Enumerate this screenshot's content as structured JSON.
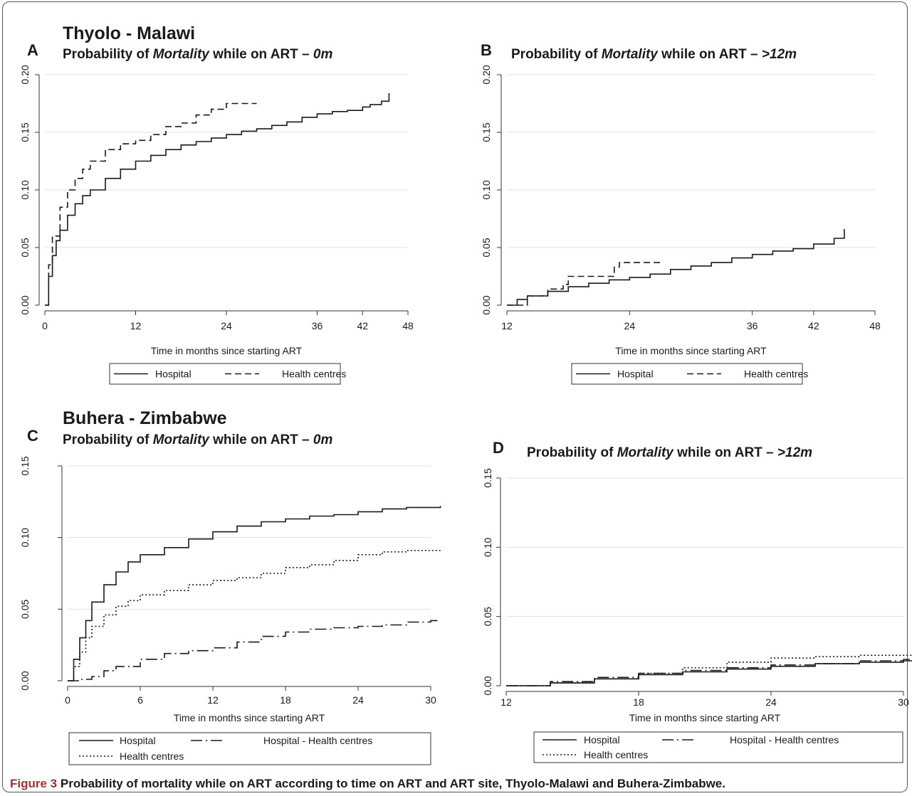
{
  "figure": {
    "caption_label": "Figure 3",
    "caption_text": "Probability of mortality while on ART according to time on ART and ART site, Thyolo-Malawi and Buhera-Zimbabwe."
  },
  "colors": {
    "line": "#1a1a1a",
    "grid": "#e0e0e0",
    "axis": "#333333",
    "caption_label": "#a0322d"
  },
  "chart_data": [
    {
      "type": "line",
      "panel_letter": "A",
      "region_title": "Thyolo - Malawi",
      "title_parts": [
        "Probability of ",
        "Mortality",
        " while on ART – ",
        "0m"
      ],
      "xlabel": "Time in months since starting ART",
      "ylabel": "",
      "xlim": [
        0,
        48
      ],
      "ylim": [
        0,
        0.2
      ],
      "xticks": [
        0,
        12,
        24,
        36,
        42,
        48
      ],
      "yticks": [
        0,
        0.05,
        0.1,
        0.15,
        0.2
      ],
      "ytick_labels": [
        "0.00",
        "0.05",
        "0.10",
        "0.15",
        "0.20"
      ],
      "grid": true,
      "legend_position": "bottom",
      "legend_columns": 2,
      "series": [
        {
          "name": "Hospital",
          "dash": "solid",
          "x": [
            0,
            0.5,
            1,
            1.5,
            2,
            3,
            4,
            5,
            6,
            8,
            10,
            12,
            14,
            16,
            18,
            20,
            22,
            24,
            26,
            28,
            30,
            32,
            34,
            36,
            38,
            40,
            42,
            43,
            44.5,
            45.5
          ],
          "y": [
            0,
            0.025,
            0.043,
            0.056,
            0.065,
            0.078,
            0.088,
            0.095,
            0.1,
            0.11,
            0.118,
            0.125,
            0.13,
            0.135,
            0.139,
            0.142,
            0.145,
            0.148,
            0.151,
            0.153,
            0.156,
            0.159,
            0.163,
            0.166,
            0.168,
            0.169,
            0.172,
            0.174,
            0.177,
            0.184
          ]
        },
        {
          "name": "Health centres",
          "dash": "dashed",
          "x": [
            0,
            0.5,
            1,
            2,
            3,
            4,
            5,
            6,
            8,
            10,
            12,
            14,
            16,
            18,
            20,
            22,
            24,
            26,
            28
          ],
          "y": [
            0,
            0.035,
            0.06,
            0.085,
            0.1,
            0.11,
            0.118,
            0.125,
            0.135,
            0.14,
            0.143,
            0.148,
            0.155,
            0.158,
            0.165,
            0.17,
            0.175,
            0.175,
            0.175
          ]
        }
      ]
    },
    {
      "type": "line",
      "panel_letter": "B",
      "region_title": "",
      "title_parts": [
        "Probability of ",
        "Mortality",
        " while on ART – ",
        ">12m"
      ],
      "xlabel": "Time in months since starting ART",
      "ylabel": "",
      "xlim": [
        12,
        48
      ],
      "ylim": [
        0,
        0.2
      ],
      "xticks": [
        12,
        24,
        36,
        42,
        48
      ],
      "yticks": [
        0,
        0.05,
        0.1,
        0.15,
        0.2
      ],
      "ytick_labels": [
        "0.00",
        "0.05",
        "0.10",
        "0.15",
        "0.20"
      ],
      "grid": true,
      "legend_position": "bottom",
      "legend_columns": 2,
      "series": [
        {
          "name": "Hospital",
          "dash": "solid",
          "x": [
            12,
            13,
            14,
            16,
            18,
            20,
            22,
            24,
            26,
            28,
            30,
            32,
            34,
            36,
            38,
            40,
            42,
            44,
            45
          ],
          "y": [
            0,
            0.005,
            0.008,
            0.012,
            0.016,
            0.019,
            0.022,
            0.024,
            0.027,
            0.031,
            0.034,
            0.037,
            0.041,
            0.044,
            0.047,
            0.049,
            0.053,
            0.058,
            0.066
          ]
        },
        {
          "name": "Health centres",
          "dash": "dashed",
          "x": [
            12,
            14,
            16,
            17.5,
            18,
            20,
            21.5,
            22.5,
            23,
            27
          ],
          "y": [
            0,
            0.008,
            0.014,
            0.018,
            0.025,
            0.025,
            0.025,
            0.033,
            0.037,
            0.037
          ]
        }
      ]
    },
    {
      "type": "line",
      "panel_letter": "C",
      "region_title": "Buhera - Zimbabwe",
      "title_parts": [
        "Probability of ",
        "Mortality",
        " while on ART – ",
        "0m"
      ],
      "xlabel": "Time in months since starting ART",
      "ylabel": "",
      "xlim": [
        0,
        30
      ],
      "ylim": [
        0,
        0.15
      ],
      "xticks": [
        0,
        6,
        12,
        18,
        24,
        30
      ],
      "yticks": [
        0,
        0.05,
        0.1,
        0.15
      ],
      "ytick_labels": [
        "0.00",
        "0.05",
        "0.10",
        "0.15"
      ],
      "grid": true,
      "legend_position": "bottom",
      "legend_columns": 2,
      "series": [
        {
          "name": "Hospital",
          "dash": "solid",
          "x": [
            0,
            0.5,
            1,
            1.5,
            2,
            3,
            4,
            5,
            6,
            8,
            10,
            12,
            14,
            16,
            18,
            20,
            22,
            24,
            26,
            28,
            30,
            30.8
          ],
          "y": [
            0,
            0.015,
            0.03,
            0.042,
            0.055,
            0.067,
            0.076,
            0.083,
            0.088,
            0.093,
            0.099,
            0.104,
            0.108,
            0.111,
            0.113,
            0.115,
            0.116,
            0.118,
            0.12,
            0.121,
            0.121,
            0.122
          ]
        },
        {
          "name": "Hospital - Health centres",
          "dash": "dashdot",
          "x": [
            0,
            1,
            2,
            3,
            4,
            6,
            8,
            10,
            12,
            14,
            16,
            18,
            20,
            22,
            24,
            26,
            28,
            30,
            30.8
          ],
          "y": [
            0,
            0.001,
            0.003,
            0.007,
            0.01,
            0.015,
            0.019,
            0.021,
            0.023,
            0.027,
            0.031,
            0.034,
            0.036,
            0.037,
            0.038,
            0.039,
            0.041,
            0.042,
            0.042
          ]
        },
        {
          "name": "Health centres",
          "dash": "dotted",
          "x": [
            0,
            0.5,
            1,
            1.5,
            2,
            3,
            4,
            5,
            6,
            8,
            10,
            12,
            14,
            16,
            18,
            20,
            22,
            24,
            26,
            28,
            30,
            30.8
          ],
          "y": [
            0,
            0.01,
            0.02,
            0.03,
            0.038,
            0.046,
            0.052,
            0.056,
            0.06,
            0.063,
            0.067,
            0.07,
            0.072,
            0.075,
            0.079,
            0.081,
            0.084,
            0.088,
            0.09,
            0.091,
            0.091,
            0.091
          ]
        }
      ]
    },
    {
      "type": "line",
      "panel_letter": "D",
      "region_title": "",
      "title_parts": [
        "Probability of ",
        "Mortality",
        " while on ART – ",
        ">12m"
      ],
      "xlabel": "Time in months since starting ART",
      "ylabel": "",
      "xlim": [
        12,
        30
      ],
      "ylim": [
        0,
        0.15
      ],
      "xticks": [
        12,
        18,
        24,
        30
      ],
      "yticks": [
        0,
        0.05,
        0.1,
        0.15
      ],
      "ytick_labels": [
        "0.00",
        "0.05",
        "0.10",
        "0.15"
      ],
      "grid": true,
      "legend_position": "bottom",
      "legend_columns": 2,
      "series": [
        {
          "name": "Hospital",
          "dash": "solid",
          "x": [
            12,
            14,
            16,
            18,
            20,
            22,
            24,
            26,
            28,
            30,
            30.6,
            30.6
          ],
          "y": [
            0,
            0.002,
            0.005,
            0.008,
            0.01,
            0.012,
            0.014,
            0.016,
            0.017,
            0.018,
            0.018,
            0.033
          ]
        },
        {
          "name": "Hospital - Health centres",
          "dash": "dashdot",
          "x": [
            12,
            14,
            16,
            18,
            20,
            22,
            24,
            26,
            28,
            30,
            30.6
          ],
          "y": [
            0,
            0.003,
            0.006,
            0.009,
            0.011,
            0.013,
            0.015,
            0.016,
            0.018,
            0.019,
            0.019
          ]
        },
        {
          "name": "Health centres",
          "dash": "dotted",
          "x": [
            12,
            14,
            16,
            18,
            20,
            22,
            24,
            26,
            28,
            30,
            30.6
          ],
          "y": [
            0,
            0.002,
            0.005,
            0.009,
            0.013,
            0.017,
            0.02,
            0.021,
            0.022,
            0.022,
            0.022
          ]
        }
      ]
    }
  ]
}
